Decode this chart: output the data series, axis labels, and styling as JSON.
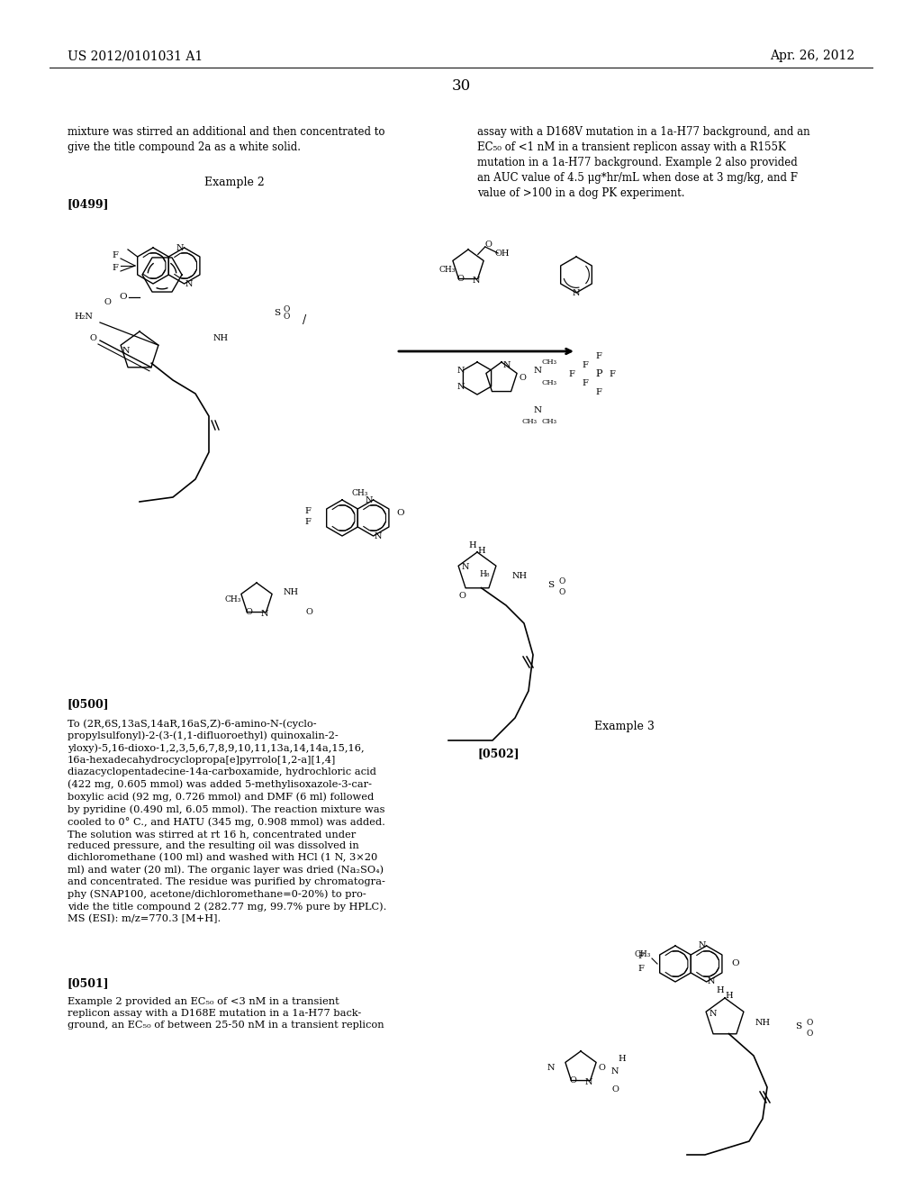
{
  "page_number": "30",
  "patent_number": "US 2012/0101031 A1",
  "patent_date": "Apr. 26, 2012",
  "background_color": "#ffffff",
  "text_color": "#000000",
  "font_size_body": 9,
  "font_size_header": 10,
  "left_column_text_top": "mixture was stirred an additional and then concentrated to\ngive the title compound 2a as a white solid.",
  "left_column_label": "Example 2",
  "left_paragraph_label": "[0499]",
  "right_column_text_top": "assay with a D168V mutation in a 1a-H77 background, and an\nEC₅₀ of <1 nM in a transient replicon assay with a R155K\nmutation in a 1a-H77 background. Example 2 also provided\nan AUC value of 4.5 μg*hr/mL when dose at 3 mg/kg, and F\nvalue of >100 in a dog PK experiment.",
  "left_column_text_bottom_label": "[0500]",
  "left_column_text_bottom": "To (2R,6S,13aS,14aR,16aS,Z)-6-amino-N-(cyclo-\npropylsulfonyl)-2-(3-(1,1-difluoroethyl) quinoxalin-2-\nyloxy)-5,16-dioxo-1,2,3,5,6,7,8,9,10,11,13a,14,14a,15,16,\n16a-hexadecahydrocyclopropa[e]pyrrolo[1,2-a][1,4]\ndiazacyclopentadecine-14a-carboxamide, hydrochloric acid\n(422 mg, 0.605 mmol) was added 5-methylisoxazole-3-car-\nboxylic acid (92 mg, 0.726 mmol) and DMF (6 ml) followed\nby pyridine (0.490 ml, 6.05 mmol). The reaction mixture was\ncooled to 0° C., and HATU (345 mg, 0.908 mmol) was added.\nThe solution was stirred at rt 16 h, concentrated under\nreduced pressure, and the resulting oil was dissolved in\ndichloromethane (100 ml) and washed with HCl (1 N, 3×20\nml) and water (20 ml). The organic layer was dried (Na₂SO₄)\nand concentrated. The residue was purified by chromatogra-\nphy (SNAP100, acetone/dichloromethane=0-20%) to pro-\nvide the title compound 2 (282.77 mg, 99.7% pure by HPLC).\nMS (ESI): m/z=770.3 [M+H].",
  "left_column_text_bottom2_label": "[0501]",
  "left_column_text_bottom2": "Example 2 provided an EC₅₀ of <3 nM in a transient\nreplicon assay with a D168E mutation in a 1a-H77 back-\nground, an EC₅₀ of between 25-50 nM in a transient replicon",
  "right_column_label2": "Example 3",
  "right_column_label3": "[0502]",
  "figsize": [
    10.24,
    13.2
  ],
  "dpi": 100
}
